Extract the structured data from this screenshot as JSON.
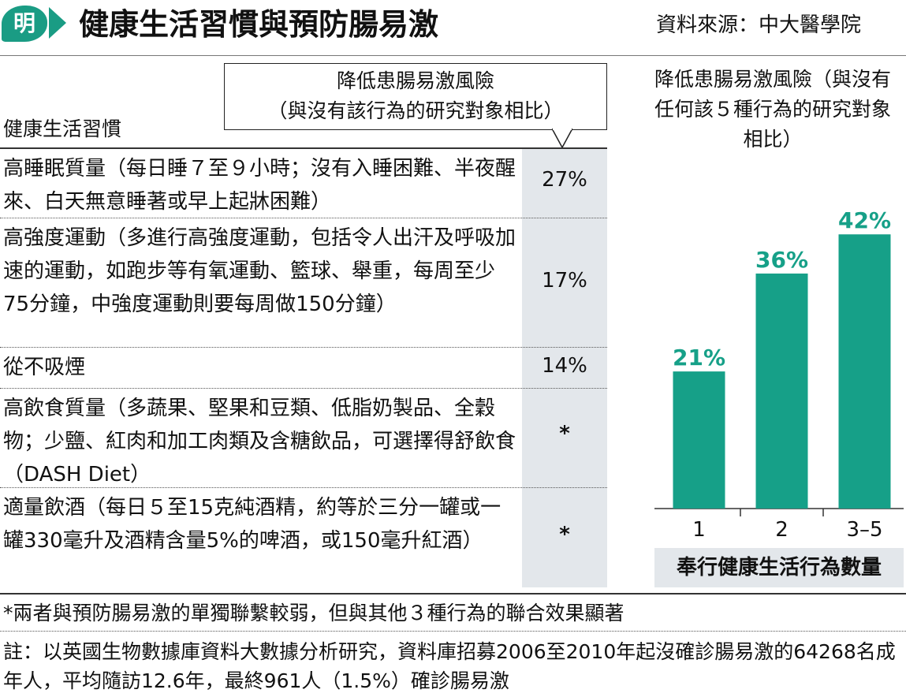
{
  "header": {
    "logo_char": "明",
    "title": "健康生活習慣與預防腸易激",
    "source": "資料來源：中大醫學院"
  },
  "table": {
    "value_header_line1": "降低患腸易激風險",
    "value_header_line2": "（與沒有該行為的研究對象相比）",
    "habit_header": "健康生活習慣",
    "rows": [
      {
        "habit": "高睡眠質量（每日睡７至９小時；沒有入睡困難、半夜醒來、白天無意睡著或早上起牀困難）",
        "value": "27%"
      },
      {
        "habit": "高強度運動（多進行高強度運動，包括令人出汗及呼吸加速的運動，如跑步等有氧運動、籃球、舉重，每周至少75分鐘，中強度運動則要每周做150分鐘）",
        "value": "17%"
      },
      {
        "habit": "從不吸煙",
        "value": "14%"
      },
      {
        "habit": "高飲食質量（多蔬果、堅果和豆類、低脂奶製品、全穀物；少鹽、紅肉和加工肉類及含糖飲品，可選擇得舒飲食（DASH Diet）",
        "value": "*"
      },
      {
        "habit": "適量飲酒（每日５至15克純酒精，約等於三分一罐或一罐330毫升及酒精含量5%的啤酒，或150毫升紅酒）",
        "value": "*"
      }
    ],
    "footnote": "*兩者與預防腸易激的單獨聯繫較弱，但與其他３種行為的聯合效果顯著",
    "note": "註：以英國生物數據庫資料大數據分析研究，資料庫招募2006至2010年起沒確診腸易激的64268名成年人，平均隨訪12.6年，最終961人（1.5%）確診腸易激"
  },
  "chart_data": {
    "type": "bar",
    "title": "降低患腸易激風險（與沒有任何該５種行為的研究對象相比）",
    "xlabel": "奉行健康生活行為數量",
    "ylabel": "",
    "categories": [
      "1",
      "2",
      "3–5"
    ],
    "values": [
      21,
      36,
      42
    ],
    "value_labels": [
      "21%",
      "36%",
      "42%"
    ],
    "ylim": [
      0,
      50
    ],
    "grid": false,
    "legend": "none",
    "bar_color": "#16a088",
    "label_color": "#16a088"
  },
  "colors": {
    "accent": "#1a9c84",
    "value_column_bg": "#e3e7eb"
  }
}
